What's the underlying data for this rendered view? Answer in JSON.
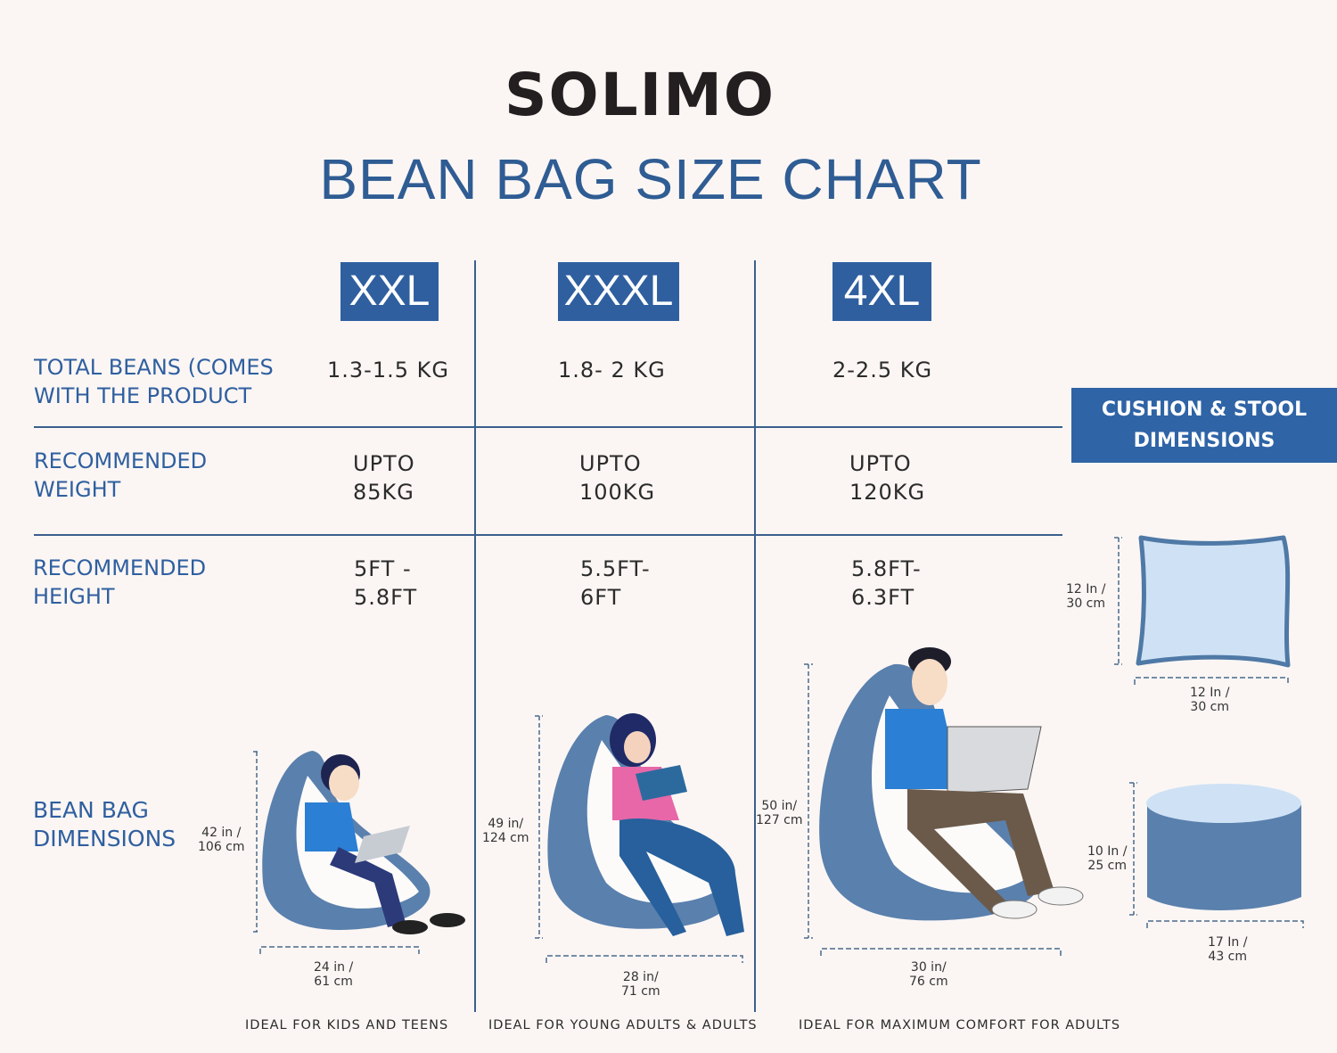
{
  "brand": {
    "logo": "SOLIMO"
  },
  "title": "BEAN BAG SIZE CHART",
  "colors": {
    "accent": "#2f5f9f",
    "background": "#fbf6f4",
    "bag": "#5a80ad",
    "text": "#2b2b2b"
  },
  "sizes": [
    {
      "label": "XXL",
      "beans": "1.3-1.5 KG",
      "weight": "UPTO\n85KG",
      "height": "5FT -\n5.8FT",
      "bag_height": "42 in /\n106 cm",
      "bag_width": "24 in /\n61 cm",
      "ideal_for": "IDEAL FOR KIDS AND TEENS"
    },
    {
      "label": "XXXL",
      "beans": "1.8- 2 KG",
      "weight": "UPTO\n100KG",
      "height": "5.5FT-\n6FT",
      "bag_height": "49 in/\n124 cm",
      "bag_width": "28 in/\n71 cm",
      "ideal_for": "IDEAL FOR YOUNG ADULTS & ADULTS"
    },
    {
      "label": "4XL",
      "beans": "2-2.5 KG",
      "weight": "UPTO\n120KG",
      "height": "5.8FT-\n6.3FT",
      "bag_height": "50 in/\n127 cm",
      "bag_width": "30 in/\n76 cm",
      "ideal_for": "IDEAL FOR MAXIMUM COMFORT FOR ADULTS"
    }
  ],
  "row_labels": {
    "beans": "TOTAL BEANS (COMES\nWITH THE PRODUCT",
    "weight": "RECOMMENDED\nWEIGHT",
    "height": "RECOMMENDED\nHEIGHT",
    "dimensions": "BEAN BAG\nDIMENSIONS"
  },
  "accessories": {
    "heading": "CUSHION & STOOL\nDIMENSIONS",
    "cushion": {
      "height": "12 In /\n30 cm",
      "width": "12 In /\n30 cm"
    },
    "stool": {
      "height": "10 In /\n25 cm",
      "width": "17 In /\n43 cm"
    }
  }
}
